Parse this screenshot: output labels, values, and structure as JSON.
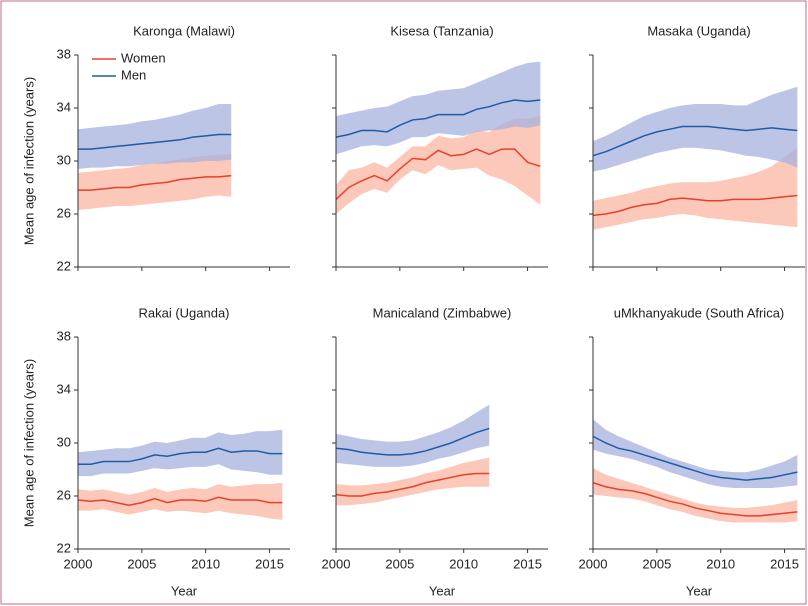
{
  "chart_data": [
    {
      "type": "line",
      "title": "Karonga (Malawi)",
      "ylabel": "Mean age of infection (years)",
      "legend": "upper left",
      "x": [
        2000,
        2001,
        2002,
        2003,
        2004,
        2005,
        2006,
        2007,
        2008,
        2009,
        2010,
        2011,
        2012,
        2013,
        2014,
        2015,
        2016
      ],
      "xlim": [
        2000,
        2016.6
      ],
      "xticks": [
        2000,
        2005,
        2010,
        2015
      ],
      "ylim": [
        22,
        38
      ],
      "yticks": [
        22,
        26,
        30,
        34,
        38
      ],
      "series": [
        {
          "name": "Women",
          "color": "#e8402a",
          "band_color": "#f9b6a2",
          "values": [
            27.8,
            27.8,
            27.9,
            28.0,
            28.0,
            28.2,
            28.3,
            28.4,
            28.6,
            28.7,
            28.8,
            28.8,
            28.9,
            null,
            null,
            null,
            null
          ],
          "lower": [
            26.3,
            26.4,
            26.5,
            26.6,
            26.6,
            26.7,
            26.8,
            26.9,
            27.0,
            27.1,
            27.3,
            27.4,
            27.3,
            null,
            null,
            null,
            null
          ],
          "upper": [
            29.1,
            29.2,
            29.3,
            29.4,
            29.5,
            29.7,
            29.8,
            30.0,
            30.1,
            30.3,
            30.4,
            30.5,
            30.5,
            null,
            null,
            null,
            null
          ]
        },
        {
          "name": "Men",
          "color": "#1f5ca6",
          "band_color": "#a7b2dd",
          "values": [
            30.9,
            30.9,
            31.0,
            31.1,
            31.2,
            31.3,
            31.4,
            31.5,
            31.6,
            31.8,
            31.9,
            32.0,
            32.0,
            null,
            null,
            null,
            null
          ],
          "lower": [
            29.4,
            29.5,
            29.5,
            29.6,
            29.6,
            29.7,
            29.8,
            29.8,
            29.9,
            29.9,
            30.0,
            30.0,
            30.1,
            null,
            null,
            null,
            null
          ],
          "upper": [
            32.4,
            32.5,
            32.6,
            32.7,
            32.8,
            33.0,
            33.1,
            33.3,
            33.5,
            33.8,
            34.0,
            34.3,
            34.3,
            null,
            null,
            null,
            null
          ]
        }
      ]
    },
    {
      "type": "line",
      "title": "Kisesa (Tanzania)",
      "x": [
        2000,
        2001,
        2002,
        2003,
        2004,
        2005,
        2006,
        2007,
        2008,
        2009,
        2010,
        2011,
        2012,
        2013,
        2014,
        2015,
        2016
      ],
      "xlim": [
        2000,
        2016.6
      ],
      "xticks": [
        2000,
        2005,
        2010,
        2015
      ],
      "ylim": [
        22,
        38
      ],
      "yticks": [
        22,
        26,
        30,
        34,
        38
      ],
      "series": [
        {
          "color": "#e8402a",
          "band_color": "#f9b6a2",
          "values": [
            27.1,
            28.0,
            28.5,
            28.9,
            28.5,
            29.4,
            30.2,
            30.1,
            30.8,
            30.4,
            30.5,
            30.9,
            30.5,
            30.9,
            30.9,
            29.9,
            29.6
          ],
          "lower": [
            26.0,
            26.8,
            27.5,
            27.9,
            27.6,
            28.6,
            29.3,
            29.0,
            29.7,
            29.3,
            29.4,
            29.5,
            28.9,
            28.6,
            28.1,
            27.4,
            26.7
          ],
          "upper": [
            28.2,
            29.3,
            29.5,
            29.9,
            29.5,
            30.3,
            31.1,
            31.1,
            31.9,
            31.7,
            31.8,
            32.3,
            32.2,
            32.8,
            33.2,
            33.2,
            33.4
          ]
        },
        {
          "color": "#1f5ca6",
          "band_color": "#a7b2dd",
          "values": [
            31.8,
            32.0,
            32.3,
            32.3,
            32.2,
            32.7,
            33.1,
            33.2,
            33.5,
            33.5,
            33.5,
            33.9,
            34.1,
            34.4,
            34.6,
            34.5,
            34.6
          ],
          "lower": [
            30.5,
            30.8,
            31.1,
            31.2,
            31.1,
            31.4,
            31.8,
            31.8,
            32.1,
            32.0,
            31.9,
            32.2,
            32.3,
            32.4,
            32.6,
            32.5,
            32.7
          ],
          "upper": [
            33.4,
            33.6,
            33.8,
            34.0,
            34.1,
            34.5,
            34.9,
            35.0,
            35.3,
            35.4,
            35.5,
            35.9,
            36.3,
            36.7,
            37.1,
            37.4,
            37.5
          ]
        }
      ]
    },
    {
      "type": "line",
      "title": "Masaka (Uganda)",
      "x": [
        2000,
        2001,
        2002,
        2003,
        2004,
        2005,
        2006,
        2007,
        2008,
        2009,
        2010,
        2011,
        2012,
        2013,
        2014,
        2015,
        2016
      ],
      "xlim": [
        2000,
        2016.6
      ],
      "xticks": [
        2000,
        2005,
        2010,
        2015
      ],
      "ylim": [
        22,
        38
      ],
      "yticks": [
        22,
        26,
        30,
        34,
        38
      ],
      "series": [
        {
          "color": "#e8402a",
          "band_color": "#f9b6a2",
          "values": [
            25.9,
            26.0,
            26.2,
            26.5,
            26.7,
            26.8,
            27.1,
            27.2,
            27.1,
            27.0,
            27.0,
            27.1,
            27.1,
            27.1,
            27.2,
            27.3,
            27.4
          ],
          "lower": [
            24.8,
            25.0,
            25.2,
            25.4,
            25.6,
            25.7,
            25.9,
            26.0,
            25.9,
            25.7,
            25.6,
            25.5,
            25.4,
            25.3,
            25.2,
            25.1,
            25.0
          ],
          "upper": [
            27.0,
            27.2,
            27.4,
            27.6,
            27.9,
            28.1,
            28.3,
            28.4,
            28.4,
            28.4,
            28.5,
            28.7,
            28.9,
            29.2,
            29.6,
            30.3,
            31.0
          ]
        },
        {
          "color": "#1f5ca6",
          "band_color": "#a7b2dd",
          "values": [
            30.4,
            30.7,
            31.1,
            31.5,
            31.9,
            32.2,
            32.4,
            32.6,
            32.6,
            32.6,
            32.5,
            32.4,
            32.3,
            32.4,
            32.5,
            32.4,
            32.3
          ],
          "lower": [
            29.2,
            29.4,
            29.7,
            30.0,
            30.3,
            30.6,
            30.8,
            31.0,
            31.0,
            30.9,
            30.8,
            30.6,
            30.4,
            30.3,
            30.1,
            29.9,
            29.5
          ],
          "upper": [
            31.5,
            31.9,
            32.4,
            32.9,
            33.4,
            33.7,
            34.0,
            34.2,
            34.3,
            34.3,
            34.3,
            34.2,
            34.2,
            34.6,
            35.0,
            35.3,
            35.6
          ]
        }
      ]
    },
    {
      "type": "line",
      "title": "Rakai (Uganda)",
      "ylabel": "Mean age of infection (years)",
      "xlabel": "Year",
      "x": [
        2000,
        2001,
        2002,
        2003,
        2004,
        2005,
        2006,
        2007,
        2008,
        2009,
        2010,
        2011,
        2012,
        2013,
        2014,
        2015,
        2016
      ],
      "xlim": [
        2000,
        2016.6
      ],
      "xticks": [
        2000,
        2005,
        2010,
        2015
      ],
      "ylim": [
        22,
        38
      ],
      "yticks": [
        22,
        26,
        30,
        34,
        38
      ],
      "series": [
        {
          "color": "#e8402a",
          "band_color": "#f9b6a2",
          "values": [
            25.7,
            25.6,
            25.7,
            25.5,
            25.3,
            25.5,
            25.8,
            25.5,
            25.7,
            25.7,
            25.6,
            25.9,
            25.7,
            25.7,
            25.7,
            25.5,
            25.5
          ],
          "lower": [
            24.9,
            24.9,
            25.0,
            24.8,
            24.6,
            24.8,
            25.0,
            24.8,
            24.9,
            24.8,
            24.7,
            24.9,
            24.7,
            24.6,
            24.5,
            24.3,
            24.2
          ],
          "upper": [
            26.5,
            26.4,
            26.5,
            26.3,
            26.1,
            26.3,
            26.6,
            26.3,
            26.5,
            26.6,
            26.5,
            26.9,
            26.7,
            26.8,
            26.9,
            26.9,
            27.0
          ]
        },
        {
          "color": "#1f5ca6",
          "band_color": "#a7b2dd",
          "values": [
            28.4,
            28.4,
            28.6,
            28.6,
            28.6,
            28.8,
            29.1,
            29.0,
            29.2,
            29.3,
            29.3,
            29.6,
            29.3,
            29.4,
            29.4,
            29.2,
            29.2
          ],
          "lower": [
            27.5,
            27.5,
            27.7,
            27.7,
            27.7,
            27.9,
            28.1,
            28.0,
            28.1,
            28.2,
            28.2,
            28.4,
            28.0,
            27.9,
            27.8,
            27.6,
            27.6
          ],
          "upper": [
            29.3,
            29.4,
            29.5,
            29.6,
            29.6,
            29.8,
            30.1,
            30.0,
            30.2,
            30.4,
            30.4,
            30.8,
            30.6,
            30.7,
            30.9,
            30.9,
            31.0
          ]
        }
      ]
    },
    {
      "type": "line",
      "title": "Manicaland (Zimbabwe)",
      "xlabel": "Year",
      "x": [
        2000,
        2001,
        2002,
        2003,
        2004,
        2005,
        2006,
        2007,
        2008,
        2009,
        2010,
        2011,
        2012,
        2013,
        2014,
        2015,
        2016
      ],
      "xlim": [
        2000,
        2016.6
      ],
      "xticks": [
        2000,
        2005,
        2010,
        2015
      ],
      "ylim": [
        22,
        38
      ],
      "yticks": [
        22,
        26,
        30,
        34,
        38
      ],
      "series": [
        {
          "color": "#e8402a",
          "band_color": "#f9b6a2",
          "values": [
            26.1,
            26.0,
            26.0,
            26.2,
            26.3,
            26.5,
            26.7,
            27.0,
            27.2,
            27.4,
            27.6,
            27.7,
            27.7,
            null,
            null,
            null,
            null
          ],
          "lower": [
            25.3,
            25.3,
            25.4,
            25.5,
            25.7,
            25.9,
            26.1,
            26.3,
            26.5,
            26.6,
            26.7,
            26.7,
            26.7,
            null,
            null,
            null,
            null
          ],
          "upper": [
            26.9,
            26.8,
            26.8,
            26.9,
            27.0,
            27.2,
            27.4,
            27.7,
            27.9,
            28.2,
            28.5,
            28.7,
            28.9,
            null,
            null,
            null,
            null
          ]
        },
        {
          "color": "#1f5ca6",
          "band_color": "#a7b2dd",
          "values": [
            29.6,
            29.5,
            29.3,
            29.2,
            29.1,
            29.1,
            29.2,
            29.4,
            29.7,
            30.0,
            30.4,
            30.8,
            31.1,
            null,
            null,
            null,
            null
          ],
          "lower": [
            28.5,
            28.4,
            28.3,
            28.2,
            28.2,
            28.2,
            28.3,
            28.5,
            28.8,
            29.0,
            29.3,
            29.6,
            29.8,
            null,
            null,
            null,
            null
          ],
          "upper": [
            30.7,
            30.5,
            30.3,
            30.2,
            30.1,
            30.1,
            30.2,
            30.5,
            30.8,
            31.2,
            31.7,
            32.3,
            32.9,
            null,
            null,
            null,
            null
          ]
        }
      ]
    },
    {
      "type": "line",
      "title": "uMkhanyakude (South Africa)",
      "xlabel": "Year",
      "x": [
        2000,
        2001,
        2002,
        2003,
        2004,
        2005,
        2006,
        2007,
        2008,
        2009,
        2010,
        2011,
        2012,
        2013,
        2014,
        2015,
        2016
      ],
      "xlim": [
        2000,
        2016.6
      ],
      "xticks": [
        2000,
        2005,
        2010,
        2015
      ],
      "ylim": [
        22,
        38
      ],
      "yticks": [
        22,
        26,
        30,
        34,
        38
      ],
      "series": [
        {
          "color": "#e8402a",
          "band_color": "#f9b6a2",
          "values": [
            27.0,
            26.7,
            26.5,
            26.4,
            26.2,
            25.9,
            25.6,
            25.4,
            25.1,
            24.9,
            24.7,
            24.6,
            24.5,
            24.5,
            24.6,
            24.7,
            24.8
          ],
          "lower": [
            26.1,
            26.0,
            25.9,
            25.8,
            25.6,
            25.3,
            25.0,
            24.8,
            24.5,
            24.3,
            24.1,
            24.0,
            24.0,
            24.0,
            24.0,
            24.0,
            24.1
          ],
          "upper": [
            28.1,
            27.6,
            27.3,
            27.0,
            26.7,
            26.4,
            26.1,
            25.8,
            25.5,
            25.3,
            25.2,
            25.1,
            25.1,
            25.2,
            25.3,
            25.5,
            25.7
          ]
        },
        {
          "color": "#1f5ca6",
          "band_color": "#a7b2dd",
          "values": [
            30.5,
            30.0,
            29.6,
            29.4,
            29.1,
            28.8,
            28.5,
            28.2,
            27.9,
            27.6,
            27.4,
            27.3,
            27.2,
            27.3,
            27.4,
            27.6,
            27.8
          ],
          "lower": [
            29.5,
            29.2,
            29.0,
            28.8,
            28.5,
            28.2,
            27.8,
            27.5,
            27.2,
            26.9,
            26.7,
            26.6,
            26.6,
            26.6,
            26.6,
            26.7,
            26.8
          ],
          "upper": [
            31.8,
            31.0,
            30.5,
            30.1,
            29.7,
            29.3,
            28.9,
            28.6,
            28.3,
            28.0,
            27.9,
            27.8,
            27.8,
            28.0,
            28.3,
            28.6,
            29.1
          ]
        }
      ]
    }
  ]
}
